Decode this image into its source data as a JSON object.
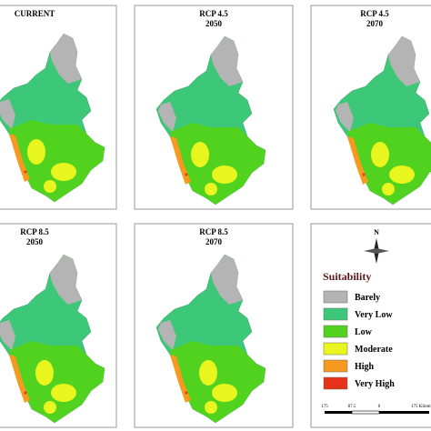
{
  "panels": [
    {
      "title": [
        "CURRENT"
      ]
    },
    {
      "title": [
        "RCP 4.5",
        "2050"
      ]
    },
    {
      "title": [
        "RCP 4.5",
        "2070"
      ]
    },
    {
      "title": [
        "RCP 8.5",
        "2050"
      ]
    },
    {
      "title": [
        "RCP 8.5",
        "2070"
      ]
    }
  ],
  "legend": {
    "north": "N",
    "title": "Suitability",
    "items": [
      {
        "label": "Barely",
        "color": "#b4b4b4"
      },
      {
        "label": "Very Low",
        "color": "#3cc878"
      },
      {
        "label": "Low",
        "color": "#50d21e"
      },
      {
        "label": "Moderate",
        "color": "#e8f51e"
      },
      {
        "label": "High",
        "color": "#f59a1f"
      },
      {
        "label": "Very High",
        "color": "#e63219"
      }
    ]
  },
  "scale": [
    "175",
    "87.5",
    "0",
    "175 Kilom"
  ]
}
